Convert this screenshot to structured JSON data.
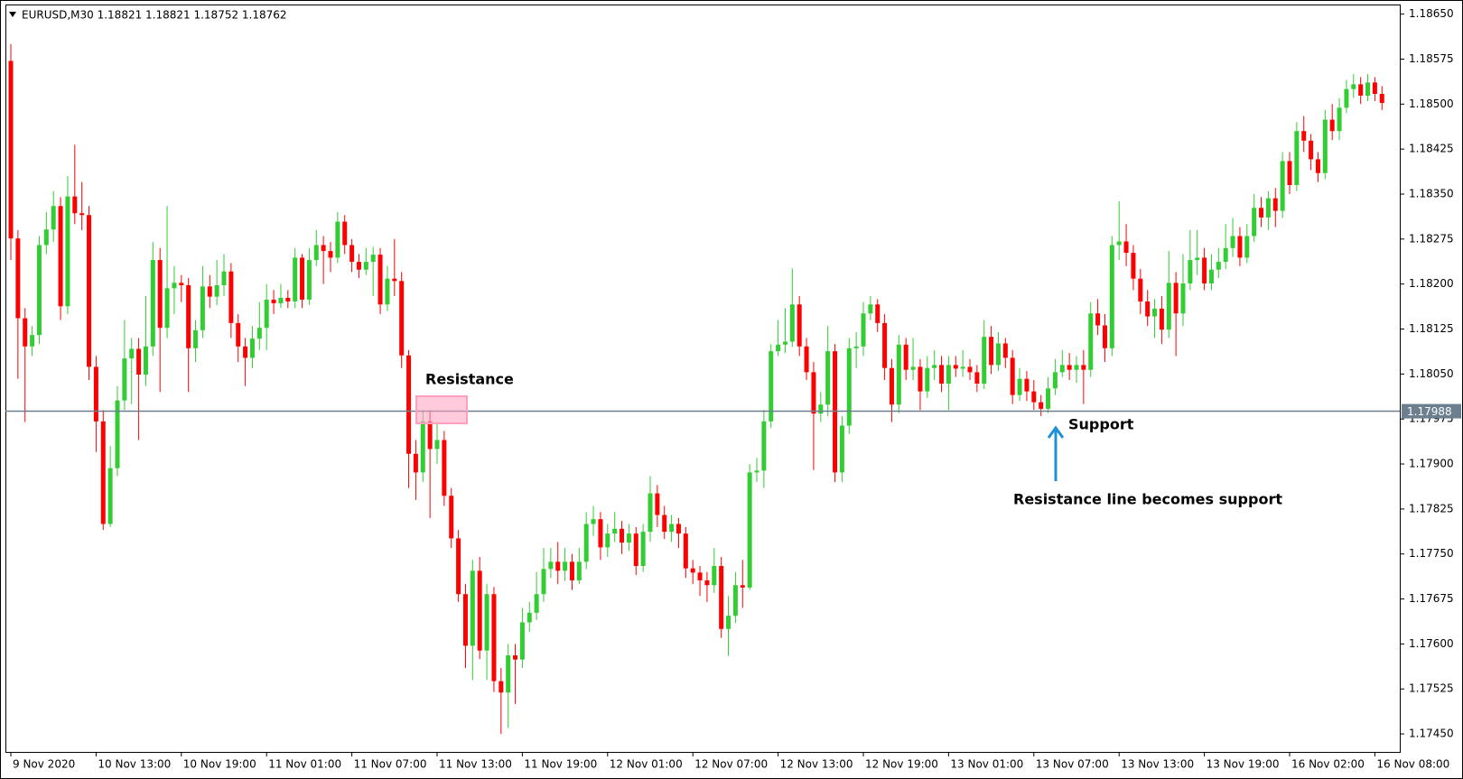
{
  "chart_data": {
    "type": "candlestick",
    "title": "EURUSD,M30  1.18821 1.18821 1.18752 1.18762",
    "up_color": "#32cd32",
    "down_color": "#ff0000",
    "ylim": [
      1.1742,
      1.18666
    ],
    "yticks": [
      {
        "value": 1.1865,
        "label": "1.18650"
      },
      1.18575,
      {
        "value": 1.185,
        "label": "1.18500"
      },
      1.18425,
      {
        "value": 1.1835,
        "label": "1.18350"
      },
      1.18275,
      {
        "value": 1.182,
        "label": "1.18200"
      },
      1.18125,
      {
        "value": 1.1805,
        "label": "1.18050"
      },
      1.17975,
      {
        "value": 1.179,
        "label": "1.17900"
      },
      1.17825,
      {
        "value": 1.1775,
        "label": "1.17750"
      },
      1.17675,
      {
        "value": 1.176,
        "label": "1.17600"
      },
      1.17525,
      {
        "value": 1.1745,
        "label": "1.17450"
      }
    ],
    "xtick_labels": [
      "9 Nov 2020",
      "10 Nov 13:00",
      "10 Nov 19:00",
      "11 Nov 01:00",
      "11 Nov 07:00",
      "11 Nov 13:00",
      "11 Nov 19:00",
      "12 Nov 01:00",
      "12 Nov 07:00",
      "12 Nov 13:00",
      "12 Nov 19:00",
      "13 Nov 01:00",
      "13 Nov 07:00",
      "13 Nov 13:00",
      "13 Nov 19:00",
      "16 Nov 02:00",
      "16 Nov 08:00"
    ],
    "hline": {
      "value": 1.17988,
      "color": "#6b7f8f"
    },
    "annotations": {
      "resistance": "Resistance",
      "support": "Support",
      "note": "Resistance line becomes support"
    },
    "candles": [
      [
        1.18572,
        1.186,
        1.1824,
        1.18276
      ],
      [
        1.18276,
        1.1829,
        1.18042,
        1.18143
      ],
      [
        1.18143,
        1.1816,
        1.1797,
        1.18096
      ],
      [
        1.18096,
        1.1813,
        1.1808,
        1.18115
      ],
      [
        1.18115,
        1.1828,
        1.181,
        1.18265
      ],
      [
        1.18265,
        1.1832,
        1.1825,
        1.18291
      ],
      [
        1.18291,
        1.18355,
        1.1827,
        1.1833
      ],
      [
        1.1833,
        1.18345,
        1.1814,
        1.18163
      ],
      [
        1.18163,
        1.1838,
        1.1815,
        1.18346
      ],
      [
        1.18346,
        1.18432,
        1.183,
        1.18318
      ],
      [
        1.18318,
        1.1837,
        1.1829,
        1.18315
      ],
      [
        1.18315,
        1.1833,
        1.1804,
        1.18062
      ],
      [
        1.18062,
        1.1808,
        1.1792,
        1.17971
      ],
      [
        1.17971,
        1.1799,
        1.1779,
        1.178
      ],
      [
        1.178,
        1.1793,
        1.17795,
        1.17893
      ],
      [
        1.17893,
        1.1803,
        1.1788,
        1.18006
      ],
      [
        1.18006,
        1.1814,
        1.1799,
        1.18076
      ],
      [
        1.18076,
        1.1811,
        1.18,
        1.18092
      ],
      [
        1.18092,
        1.1811,
        1.1794,
        1.18049
      ],
      [
        1.18049,
        1.1818,
        1.1803,
        1.18096
      ],
      [
        1.18096,
        1.1827,
        1.1808,
        1.1824
      ],
      [
        1.1824,
        1.1826,
        1.1802,
        1.18127
      ],
      [
        1.18127,
        1.1833,
        1.1811,
        1.18193
      ],
      [
        1.18193,
        1.1823,
        1.1815,
        1.18202
      ],
      [
        1.18202,
        1.18215,
        1.1817,
        1.18198
      ],
      [
        1.18198,
        1.1821,
        1.1802,
        1.18093
      ],
      [
        1.18093,
        1.1814,
        1.1807,
        1.18123
      ],
      [
        1.18123,
        1.1823,
        1.1811,
        1.18196
      ],
      [
        1.18196,
        1.18215,
        1.1816,
        1.18179
      ],
      [
        1.18179,
        1.1824,
        1.18165,
        1.18198
      ],
      [
        1.18198,
        1.1825,
        1.1818,
        1.18221
      ],
      [
        1.18221,
        1.18235,
        1.1811,
        1.18135
      ],
      [
        1.18135,
        1.1815,
        1.1807,
        1.18096
      ],
      [
        1.18096,
        1.1811,
        1.1803,
        1.18077
      ],
      [
        1.18077,
        1.1813,
        1.1806,
        1.18109
      ],
      [
        1.18109,
        1.1817,
        1.1809,
        1.18127
      ],
      [
        1.18127,
        1.182,
        1.1809,
        1.18174
      ],
      [
        1.18174,
        1.1819,
        1.1815,
        1.18168
      ],
      [
        1.18168,
        1.182,
        1.1816,
        1.18177
      ],
      [
        1.18177,
        1.1819,
        1.1816,
        1.18171
      ],
      [
        1.18171,
        1.1826,
        1.1816,
        1.18244
      ],
      [
        1.18244,
        1.1825,
        1.1816,
        1.18174
      ],
      [
        1.18174,
        1.1826,
        1.18165,
        1.1824
      ],
      [
        1.1824,
        1.1829,
        1.1823,
        1.18265
      ],
      [
        1.18265,
        1.1828,
        1.182,
        1.18255
      ],
      [
        1.18255,
        1.1827,
        1.1822,
        1.18244
      ],
      [
        1.18244,
        1.1832,
        1.18235,
        1.18304
      ],
      [
        1.18304,
        1.18315,
        1.1825,
        1.18265
      ],
      [
        1.18265,
        1.18275,
        1.1822,
        1.18237
      ],
      [
        1.18237,
        1.1825,
        1.1821,
        1.18224
      ],
      [
        1.18224,
        1.1826,
        1.18215,
        1.18237
      ],
      [
        1.18237,
        1.18262,
        1.1818,
        1.18249
      ],
      [
        1.18249,
        1.1826,
        1.1815,
        1.18166
      ],
      [
        1.18166,
        1.1823,
        1.18155,
        1.18209
      ],
      [
        1.18209,
        1.18275,
        1.1818,
        1.18205
      ],
      [
        1.18205,
        1.1822,
        1.1806,
        1.18081
      ],
      [
        1.18081,
        1.1809,
        1.1786,
        1.17917
      ],
      [
        1.17917,
        1.1794,
        1.1784,
        1.17886
      ],
      [
        1.17886,
        1.1799,
        1.1787,
        1.17971
      ],
      [
        1.17971,
        1.1799,
        1.1781,
        1.17925
      ],
      [
        1.17925,
        1.1797,
        1.179,
        1.1794
      ],
      [
        1.1794,
        1.17955,
        1.1783,
        1.17847
      ],
      [
        1.17847,
        1.1786,
        1.1776,
        1.17776
      ],
      [
        1.17776,
        1.1779,
        1.1767,
        1.17683
      ],
      [
        1.17683,
        1.177,
        1.1756,
        1.17597
      ],
      [
        1.17597,
        1.1774,
        1.1754,
        1.17722
      ],
      [
        1.17722,
        1.17745,
        1.17575,
        1.17589
      ],
      [
        1.17589,
        1.177,
        1.1754,
        1.17683
      ],
      [
        1.17683,
        1.17695,
        1.1752,
        1.17538
      ],
      [
        1.17538,
        1.1756,
        1.1745,
        1.17519
      ],
      [
        1.17519,
        1.176,
        1.1746,
        1.17581
      ],
      [
        1.17581,
        1.176,
        1.175,
        1.17574
      ],
      [
        1.17574,
        1.1766,
        1.1756,
        1.17636
      ],
      [
        1.17636,
        1.1767,
        1.1762,
        1.17652
      ],
      [
        1.17652,
        1.1772,
        1.1764,
        1.17683
      ],
      [
        1.17683,
        1.1776,
        1.1767,
        1.17725
      ],
      [
        1.17725,
        1.1776,
        1.1771,
        1.17737
      ],
      [
        1.17737,
        1.1777,
        1.177,
        1.17722
      ],
      [
        1.17722,
        1.1776,
        1.17705,
        1.17737
      ],
      [
        1.17737,
        1.1775,
        1.1769,
        1.17706
      ],
      [
        1.17706,
        1.1776,
        1.177,
        1.17737
      ],
      [
        1.17737,
        1.1782,
        1.17725,
        1.178
      ],
      [
        1.178,
        1.1783,
        1.1778,
        1.17808
      ],
      [
        1.17808,
        1.1782,
        1.1774,
        1.17761
      ],
      [
        1.17761,
        1.178,
        1.17745,
        1.17784
      ],
      [
        1.17784,
        1.1782,
        1.1777,
        1.17792
      ],
      [
        1.17792,
        1.17805,
        1.1775,
        1.17769
      ],
      [
        1.17769,
        1.178,
        1.17755,
        1.17784
      ],
      [
        1.17784,
        1.17795,
        1.17715,
        1.1773
      ],
      [
        1.1773,
        1.178,
        1.1772,
        1.17787
      ],
      [
        1.17787,
        1.1788,
        1.1777,
        1.17851
      ],
      [
        1.17851,
        1.17865,
        1.17795,
        1.17815
      ],
      [
        1.17815,
        1.1783,
        1.17775,
        1.17787
      ],
      [
        1.17787,
        1.17815,
        1.1777,
        1.178
      ],
      [
        1.178,
        1.1781,
        1.1776,
        1.17784
      ],
      [
        1.17784,
        1.17795,
        1.1771,
        1.17726
      ],
      [
        1.17726,
        1.1774,
        1.177,
        1.17719
      ],
      [
        1.17719,
        1.1773,
        1.1768,
        1.17706
      ],
      [
        1.17706,
        1.1772,
        1.1767,
        1.17698
      ],
      [
        1.17698,
        1.1776,
        1.17685,
        1.1773
      ],
      [
        1.1773,
        1.17745,
        1.1761,
        1.17625
      ],
      [
        1.17625,
        1.1768,
        1.1758,
        1.17647
      ],
      [
        1.17647,
        1.1772,
        1.17635,
        1.17698
      ],
      [
        1.17698,
        1.1774,
        1.1766,
        1.17694
      ],
      [
        1.17694,
        1.179,
        1.1769,
        1.17886
      ],
      [
        1.17886,
        1.1791,
        1.1787,
        1.17889
      ],
      [
        1.17889,
        1.1799,
        1.1786,
        1.17971
      ],
      [
        1.17971,
        1.181,
        1.1796,
        1.18088
      ],
      [
        1.18088,
        1.1814,
        1.1808,
        1.18099
      ],
      [
        1.18099,
        1.1816,
        1.18085,
        1.18104
      ],
      [
        1.18104,
        1.18226,
        1.18095,
        1.18166
      ],
      [
        1.18166,
        1.1818,
        1.1808,
        1.18096
      ],
      [
        1.18096,
        1.1811,
        1.1804,
        1.18053
      ],
      [
        1.18053,
        1.1807,
        1.1789,
        1.17984
      ],
      [
        1.17984,
        1.1802,
        1.1797,
        1.17999
      ],
      [
        1.17999,
        1.1813,
        1.1798,
        1.18088
      ],
      [
        1.18088,
        1.181,
        1.1787,
        1.17886
      ],
      [
        1.17886,
        1.1798,
        1.1787,
        1.17964
      ],
      [
        1.17964,
        1.1811,
        1.1795,
        1.18093
      ],
      [
        1.18093,
        1.1812,
        1.1806,
        1.18096
      ],
      [
        1.18096,
        1.1817,
        1.1808,
        1.18151
      ],
      [
        1.18151,
        1.1818,
        1.1814,
        1.18166
      ],
      [
        1.18166,
        1.18175,
        1.1812,
        1.18135
      ],
      [
        1.18135,
        1.1815,
        1.1804,
        1.1806
      ],
      [
        1.1806,
        1.18075,
        1.1797,
        1.17999
      ],
      [
        1.17999,
        1.18115,
        1.17985,
        1.18099
      ],
      [
        1.18099,
        1.1811,
        1.1804,
        1.18057
      ],
      [
        1.18057,
        1.1811,
        1.1804,
        1.18062
      ],
      [
        1.18062,
        1.18075,
        1.1799,
        1.18021
      ],
      [
        1.18021,
        1.1808,
        1.1801,
        1.1806
      ],
      [
        1.1806,
        1.1809,
        1.1804,
        1.18065
      ],
      [
        1.18065,
        1.1808,
        1.1802,
        1.18034
      ],
      [
        1.18034,
        1.1808,
        1.1799,
        1.18065
      ],
      [
        1.18065,
        1.1808,
        1.18045,
        1.18059
      ],
      [
        1.18059,
        1.1809,
        1.18045,
        1.18062
      ],
      [
        1.18062,
        1.18075,
        1.1804,
        1.18053
      ],
      [
        1.18053,
        1.18065,
        1.1802,
        1.18034
      ],
      [
        1.18034,
        1.1814,
        1.18025,
        1.18112
      ],
      [
        1.18112,
        1.1813,
        1.1805,
        1.18065
      ],
      [
        1.18065,
        1.1812,
        1.18055,
        1.18101
      ],
      [
        1.18101,
        1.1811,
        1.1806,
        1.18077
      ],
      [
        1.18077,
        1.1809,
        1.18,
        1.18015
      ],
      [
        1.18015,
        1.1806,
        1.18005,
        1.18042
      ],
      [
        1.18042,
        1.18055,
        1.18005,
        1.18021
      ],
      [
        1.18021,
        1.1804,
        1.1799,
        1.18003
      ],
      [
        1.18003,
        1.18015,
        1.1798,
        1.17992
      ],
      [
        1.17992,
        1.18045,
        1.17985,
        1.18026
      ],
      [
        1.18026,
        1.18075,
        1.18015,
        1.18053
      ],
      [
        1.18053,
        1.1809,
        1.18045,
        1.18065
      ],
      [
        1.18065,
        1.18085,
        1.1804,
        1.18057
      ],
      [
        1.18057,
        1.1808,
        1.18035,
        1.18065
      ],
      [
        1.18065,
        1.1809,
        1.18,
        1.18057
      ],
      [
        1.18057,
        1.1817,
        1.18045,
        1.18151
      ],
      [
        1.18151,
        1.18175,
        1.18115,
        1.18131
      ],
      [
        1.18131,
        1.1815,
        1.1807,
        1.18093
      ],
      [
        1.18093,
        1.1828,
        1.1808,
        1.18265
      ],
      [
        1.18265,
        1.18338,
        1.1824,
        1.18271
      ],
      [
        1.18271,
        1.183,
        1.1823,
        1.18252
      ],
      [
        1.18252,
        1.18265,
        1.1819,
        1.18209
      ],
      [
        1.18209,
        1.18225,
        1.1815,
        1.18171
      ],
      [
        1.18171,
        1.1819,
        1.1813,
        1.18146
      ],
      [
        1.18146,
        1.18175,
        1.1811,
        1.18159
      ],
      [
        1.18159,
        1.1818,
        1.181,
        1.18124
      ],
      [
        1.18124,
        1.18255,
        1.1811,
        1.18202
      ],
      [
        1.18202,
        1.1822,
        1.1808,
        1.18151
      ],
      [
        1.18151,
        1.1825,
        1.1813,
        1.18201
      ],
      [
        1.18201,
        1.1829,
        1.1819,
        1.1824
      ],
      [
        1.1824,
        1.1829,
        1.18215,
        1.18244
      ],
      [
        1.18244,
        1.1826,
        1.1819,
        1.18201
      ],
      [
        1.18201,
        1.1825,
        1.1819,
        1.18224
      ],
      [
        1.18224,
        1.1826,
        1.1821,
        1.18237
      ],
      [
        1.18237,
        1.183,
        1.18225,
        1.1826
      ],
      [
        1.1826,
        1.1831,
        1.18245,
        1.1828
      ],
      [
        1.1828,
        1.18295,
        1.1823,
        1.18244
      ],
      [
        1.18244,
        1.183,
        1.18235,
        1.1828
      ],
      [
        1.1828,
        1.1835,
        1.1827,
        1.18327
      ],
      [
        1.18327,
        1.18345,
        1.18295,
        1.18311
      ],
      [
        1.18311,
        1.18355,
        1.1829,
        1.18343
      ],
      [
        1.18343,
        1.1836,
        1.18295,
        1.18322
      ],
      [
        1.18322,
        1.1842,
        1.1831,
        1.18405
      ],
      [
        1.18405,
        1.1842,
        1.1835,
        1.18365
      ],
      [
        1.18365,
        1.1847,
        1.18355,
        1.18455
      ],
      [
        1.18455,
        1.1848,
        1.1842,
        1.18439
      ],
      [
        1.18439,
        1.1845,
        1.1839,
        1.18408
      ],
      [
        1.18408,
        1.1842,
        1.1837,
        1.18385
      ],
      [
        1.18385,
        1.1849,
        1.18375,
        1.18474
      ],
      [
        1.18474,
        1.185,
        1.1844,
        1.18455
      ],
      [
        1.18455,
        1.1851,
        1.1844,
        1.18494
      ],
      [
        1.18494,
        1.1854,
        1.18485,
        1.18525
      ],
      [
        1.18525,
        1.1855,
        1.1851,
        1.18533
      ],
      [
        1.18533,
        1.18545,
        1.185,
        1.18514
      ],
      [
        1.18514,
        1.1855,
        1.18505,
        1.18536
      ],
      [
        1.18536,
        1.18545,
        1.18505,
        1.18517
      ],
      [
        1.18517,
        1.1853,
        1.1849,
        1.18502
      ]
    ]
  }
}
